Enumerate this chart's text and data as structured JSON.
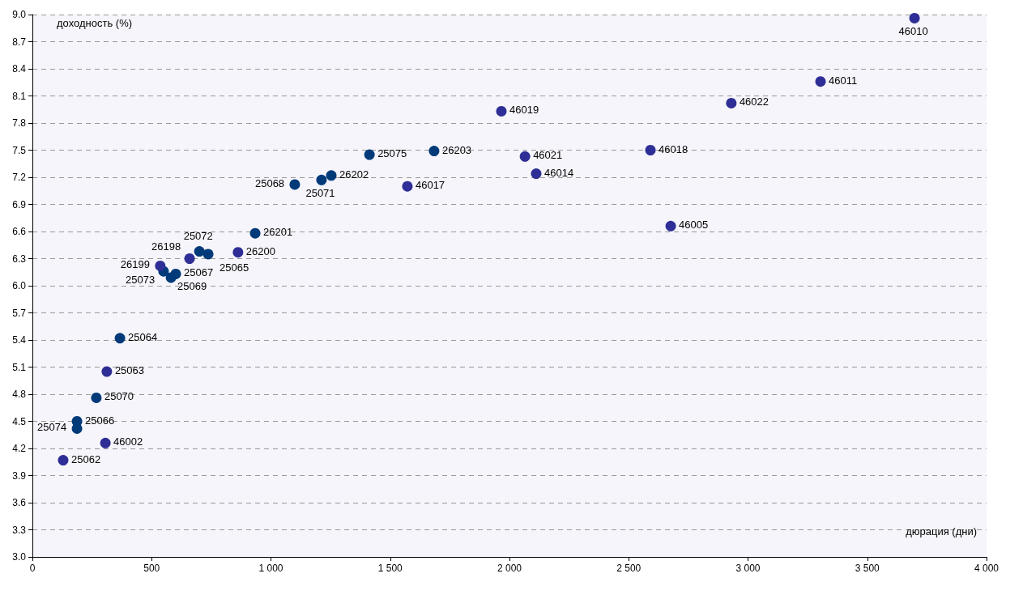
{
  "chart_data": {
    "type": "scatter",
    "xlabel": "дюрация (дни)",
    "ylabel": "доходность (%)",
    "marker": "circle",
    "grid": "y",
    "line_style": "dashed",
    "xlim": [
      0,
      4000
    ],
    "xticks": [
      0,
      500,
      {
        "value": 1000,
        "label": "1 000"
      },
      {
        "value": 1500,
        "label": "1 500"
      },
      {
        "value": 2000,
        "label": "2 000"
      },
      {
        "value": 2500,
        "label": "2 500"
      },
      {
        "value": 3000,
        "label": "3 000"
      },
      {
        "value": 3500,
        "label": "3 500"
      },
      {
        "value": 4000,
        "label": "4 000"
      }
    ],
    "ylim": [
      3,
      9
    ],
    "yticks": [
      {
        "value": 3,
        "label": "3.0"
      },
      {
        "value": 3.3,
        "label": "3.3"
      },
      {
        "value": 3.6,
        "label": "3.6"
      },
      {
        "value": 3.9,
        "label": "3.9"
      },
      {
        "value": 4.2,
        "label": "4.2"
      },
      {
        "value": 4.5,
        "label": "4.5"
      },
      {
        "value": 4.8,
        "label": "4.8"
      },
      {
        "value": 5.1,
        "label": "5.1"
      },
      {
        "value": 5.4,
        "label": "5.4"
      },
      {
        "value": 5.7,
        "label": "5.7"
      },
      {
        "value": 6,
        "label": "6.0"
      },
      {
        "value": 6.3,
        "label": "6.3"
      },
      {
        "value": 6.6,
        "label": "6.6"
      },
      {
        "value": 6.9,
        "label": "6.9"
      },
      {
        "value": 7.2,
        "label": "7.2"
      },
      {
        "value": 7.5,
        "label": "7.5"
      },
      {
        "value": 7.8,
        "label": "7.8"
      },
      {
        "value": 8.1,
        "label": "8.1"
      },
      {
        "value": 8.4,
        "label": "8.4"
      },
      {
        "value": 8.7,
        "label": "8.7"
      },
      {
        "value": 9,
        "label": "9.0"
      }
    ],
    "series": [
      {
        "color": "#003a78",
        "x": [
          367,
          187,
          187,
          268,
          550,
          581,
          601,
          700,
          737,
          934,
          1100,
          1212,
          1253,
          1413,
          1684
        ],
        "values": [
          5.42,
          4.5,
          4.42,
          4.76,
          6.16,
          6.09,
          6.13,
          6.38,
          6.35,
          6.58,
          7.12,
          7.17,
          7.22,
          7.45,
          7.49
        ]
      },
      {
        "color": "#2e2e96",
        "x": [
          536,
          659,
          862,
          1572,
          1966,
          2065,
          2112,
          2591,
          312,
          306,
          129
        ],
        "values": [
          6.22,
          6.3,
          6.37,
          7.1,
          7.93,
          7.43,
          7.24,
          7.5,
          5.05,
          4.26,
          4.07
        ]
      },
      {
        "color": "#2e2e96",
        "x": [
          2676,
          2930,
          3304,
          3698
        ],
        "values": [
          6.66,
          8.02,
          8.26,
          8.96
        ]
      }
    ],
    "annotations": [
      {
        "text": "25064",
        "x": 367,
        "y": 5.42
      },
      {
        "text": "25066",
        "x": 187,
        "y": 4.5
      },
      {
        "text": "25074",
        "x": 187,
        "y": 4.42
      },
      {
        "text": "25070",
        "x": 268,
        "y": 4.76
      },
      {
        "text": "25073",
        "x": 550,
        "y": 6.16
      },
      {
        "text": "25069",
        "x": 581,
        "y": 6.09
      },
      {
        "text": "25067",
        "x": 601,
        "y": 6.13
      },
      {
        "text": "25072",
        "x": 700,
        "y": 6.38
      },
      {
        "text": "25065",
        "x": 737,
        "y": 6.35
      },
      {
        "text": "26201",
        "x": 934,
        "y": 6.58
      },
      {
        "text": "25068",
        "x": 1100,
        "y": 7.12
      },
      {
        "text": "25071",
        "x": 1212,
        "y": 7.17
      },
      {
        "text": "26202",
        "x": 1253,
        "y": 7.22
      },
      {
        "text": "25075",
        "x": 1413,
        "y": 7.45
      },
      {
        "text": "26203",
        "x": 1684,
        "y": 7.49
      },
      {
        "text": "26199",
        "x": 536,
        "y": 6.22
      },
      {
        "text": "26198",
        "x": 659,
        "y": 6.3
      },
      {
        "text": "26200",
        "x": 862,
        "y": 6.37
      },
      {
        "text": "46017",
        "x": 1572,
        "y": 7.1
      },
      {
        "text": "46019",
        "x": 1966,
        "y": 7.93
      },
      {
        "text": "46021",
        "x": 2065,
        "y": 7.43
      },
      {
        "text": "46014",
        "x": 2112,
        "y": 7.24
      },
      {
        "text": "46018",
        "x": 2591,
        "y": 7.5
      },
      {
        "text": "25063",
        "x": 312,
        "y": 5.05
      },
      {
        "text": "46002",
        "x": 306,
        "y": 4.26
      },
      {
        "text": "25062",
        "x": 129,
        "y": 4.07
      },
      {
        "text": "46005",
        "x": 2676,
        "y": 6.66
      },
      {
        "text": "46022",
        "x": 2930,
        "y": 8.02
      },
      {
        "text": "46011",
        "x": 3304,
        "y": 8.26
      },
      {
        "text": "46010",
        "x": 3698,
        "y": 8.96
      }
    ]
  }
}
